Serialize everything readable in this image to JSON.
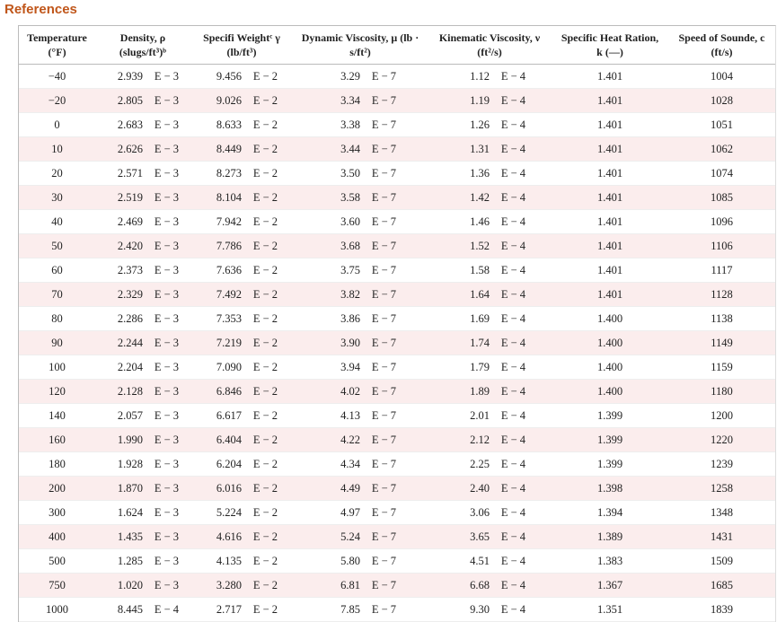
{
  "page_title": "References",
  "table": {
    "header": [
      [
        "Temperature",
        "(°F)"
      ],
      [
        "Density, ρ",
        "(slugs/ft³)ᵇ"
      ],
      [
        "Specifi Weightᶜ γ",
        "(lb/ft³)"
      ],
      [
        "Dynamic Viscosity, μ (lb ·",
        "s/ft²)"
      ],
      [
        "Kinematic Viscosity, ν",
        "(ft²/s)"
      ],
      [
        "Specific Heat Ration,",
        "k (—)"
      ],
      [
        "Speed of Sounde, c",
        "(ft/s)"
      ]
    ],
    "rows": [
      [
        "−40",
        "2.939",
        "E − 3",
        "9.456",
        "E − 2",
        "3.29",
        "E − 7",
        "1.12",
        "E − 4",
        "1.401",
        "1004"
      ],
      [
        "−20",
        "2.805",
        "E − 3",
        "9.026",
        "E − 2",
        "3.34",
        "E − 7",
        "1.19",
        "E − 4",
        "1.401",
        "1028"
      ],
      [
        "0",
        "2.683",
        "E − 3",
        "8.633",
        "E − 2",
        "3.38",
        "E − 7",
        "1.26",
        "E − 4",
        "1.401",
        "1051"
      ],
      [
        "10",
        "2.626",
        "E − 3",
        "8.449",
        "E − 2",
        "3.44",
        "E − 7",
        "1.31",
        "E − 4",
        "1.401",
        "1062"
      ],
      [
        "20",
        "2.571",
        "E − 3",
        "8.273",
        "E − 2",
        "3.50",
        "E − 7",
        "1.36",
        "E − 4",
        "1.401",
        "1074"
      ],
      [
        "30",
        "2.519",
        "E − 3",
        "8.104",
        "E − 2",
        "3.58",
        "E − 7",
        "1.42",
        "E − 4",
        "1.401",
        "1085"
      ],
      [
        "40",
        "2.469",
        "E − 3",
        "7.942",
        "E − 2",
        "3.60",
        "E − 7",
        "1.46",
        "E − 4",
        "1.401",
        "1096"
      ],
      [
        "50",
        "2.420",
        "E − 3",
        "7.786",
        "E − 2",
        "3.68",
        "E − 7",
        "1.52",
        "E − 4",
        "1.401",
        "1106"
      ],
      [
        "60",
        "2.373",
        "E − 3",
        "7.636",
        "E − 2",
        "3.75",
        "E − 7",
        "1.58",
        "E − 4",
        "1.401",
        "1117"
      ],
      [
        "70",
        "2.329",
        "E − 3",
        "7.492",
        "E − 2",
        "3.82",
        "E − 7",
        "1.64",
        "E − 4",
        "1.401",
        "1128"
      ],
      [
        "80",
        "2.286",
        "E − 3",
        "7.353",
        "E − 2",
        "3.86",
        "E − 7",
        "1.69",
        "E − 4",
        "1.400",
        "1138"
      ],
      [
        "90",
        "2.244",
        "E − 3",
        "7.219",
        "E − 2",
        "3.90",
        "E − 7",
        "1.74",
        "E − 4",
        "1.400",
        "1149"
      ],
      [
        "100",
        "2.204",
        "E − 3",
        "7.090",
        "E − 2",
        "3.94",
        "E − 7",
        "1.79",
        "E − 4",
        "1.400",
        "1159"
      ],
      [
        "120",
        "2.128",
        "E − 3",
        "6.846",
        "E − 2",
        "4.02",
        "E − 7",
        "1.89",
        "E − 4",
        "1.400",
        "1180"
      ],
      [
        "140",
        "2.057",
        "E − 3",
        "6.617",
        "E − 2",
        "4.13",
        "E − 7",
        "2.01",
        "E − 4",
        "1.399",
        "1200"
      ],
      [
        "160",
        "1.990",
        "E − 3",
        "6.404",
        "E − 2",
        "4.22",
        "E − 7",
        "2.12",
        "E − 4",
        "1.399",
        "1220"
      ],
      [
        "180",
        "1.928",
        "E − 3",
        "6.204",
        "E − 2",
        "4.34",
        "E − 7",
        "2.25",
        "E − 4",
        "1.399",
        "1239"
      ],
      [
        "200",
        "1.870",
        "E − 3",
        "6.016",
        "E − 2",
        "4.49",
        "E − 7",
        "2.40",
        "E − 4",
        "1.398",
        "1258"
      ],
      [
        "300",
        "1.624",
        "E − 3",
        "5.224",
        "E − 2",
        "4.97",
        "E − 7",
        "3.06",
        "E − 4",
        "1.394",
        "1348"
      ],
      [
        "400",
        "1.435",
        "E − 3",
        "4.616",
        "E − 2",
        "5.24",
        "E − 7",
        "3.65",
        "E − 4",
        "1.389",
        "1431"
      ],
      [
        "500",
        "1.285",
        "E − 3",
        "4.135",
        "E − 2",
        "5.80",
        "E − 7",
        "4.51",
        "E − 4",
        "1.383",
        "1509"
      ],
      [
        "750",
        "1.020",
        "E − 3",
        "3.280",
        "E − 2",
        "6.81",
        "E − 7",
        "6.68",
        "E − 4",
        "1.367",
        "1685"
      ],
      [
        "1000",
        "8.445",
        "E − 4",
        "2.717",
        "E − 2",
        "7.85",
        "E − 7",
        "9.30",
        "E − 4",
        "1.351",
        "1839"
      ]
    ]
  }
}
